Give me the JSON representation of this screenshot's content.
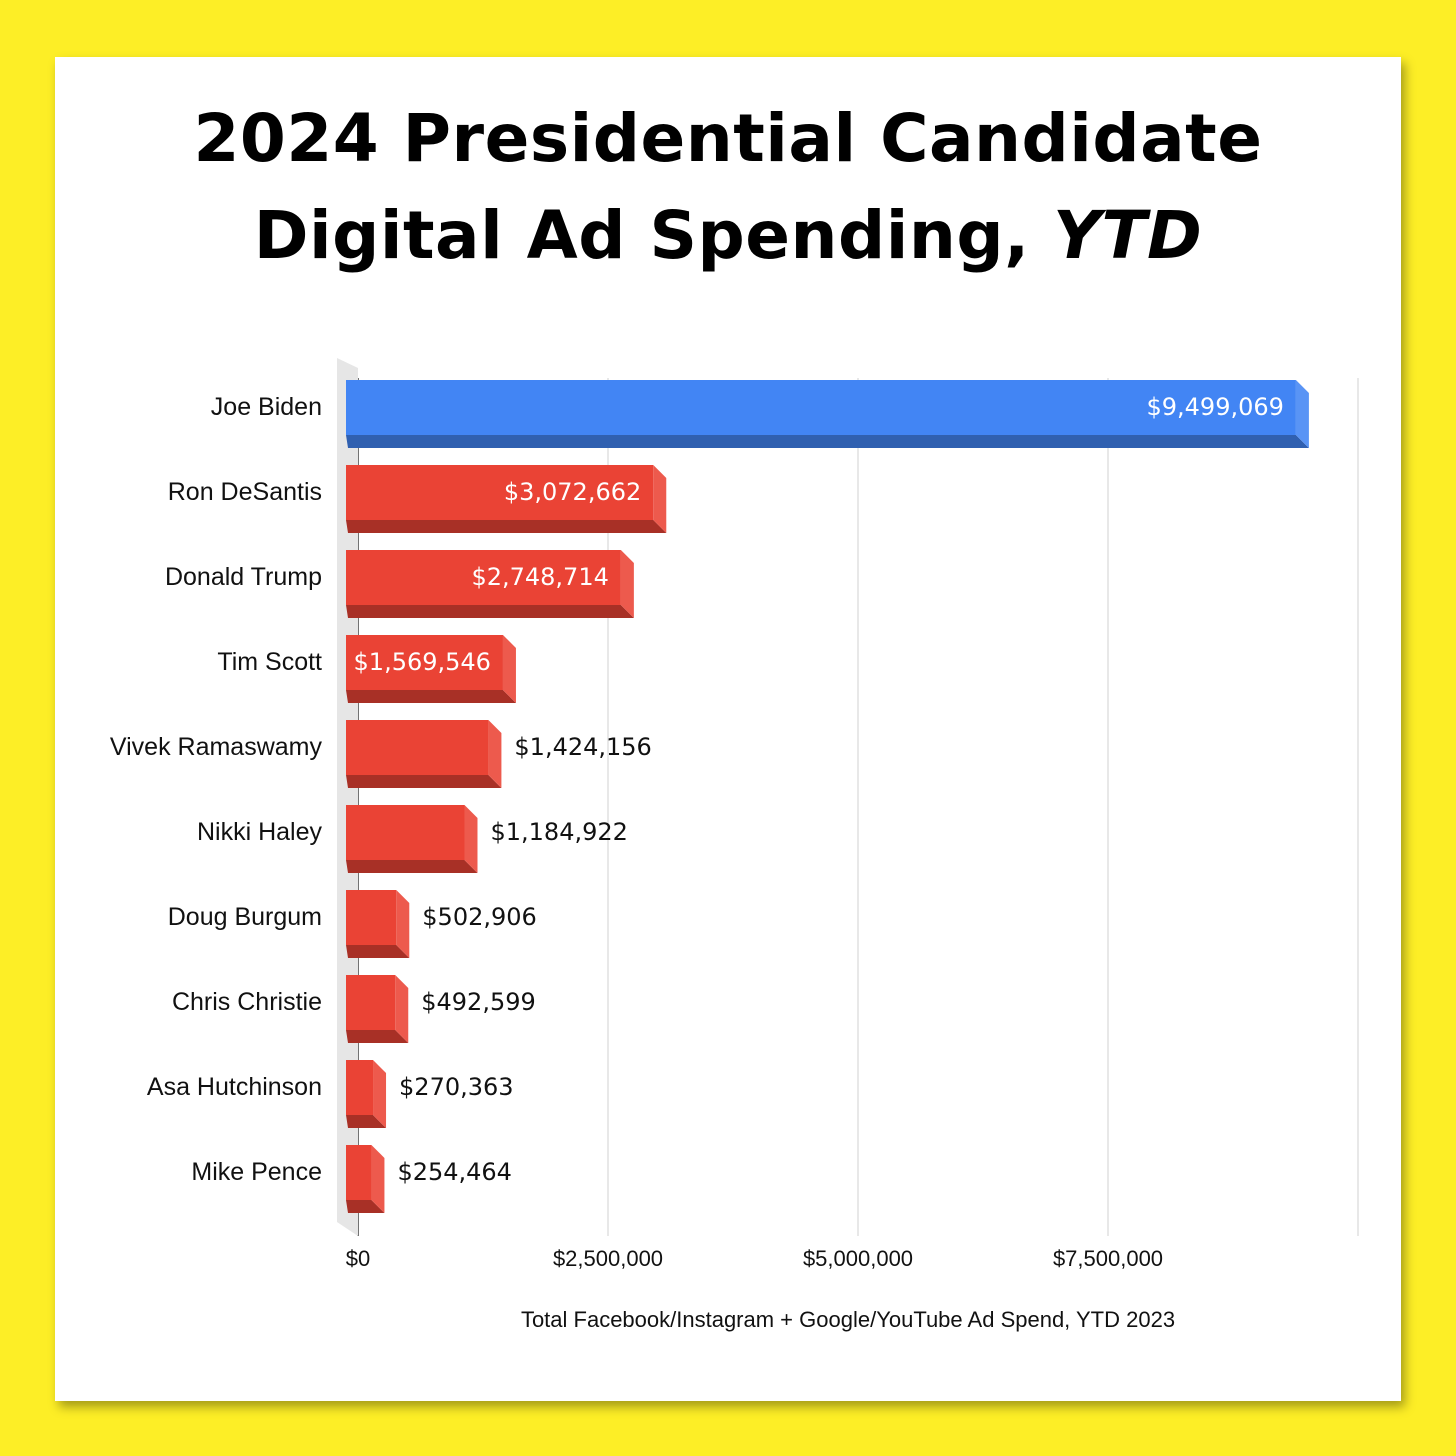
{
  "chart_data": {
    "type": "bar",
    "orientation": "horizontal",
    "title_line1": "2024 Presidential Candidate",
    "title_line2_main": "Digital Ad Spending, ",
    "title_line2_italic": "YTD",
    "categories": [
      "Joe Biden",
      "Ron DeSantis",
      "Donald Trump",
      "Tim Scott",
      "Vivek Ramaswamy",
      "Nikki Haley",
      "Doug Burgum",
      "Chris Christie",
      "Asa Hutchinson",
      "Mike Pence"
    ],
    "values": [
      9499069,
      3072662,
      2748714,
      1569546,
      1424156,
      1184922,
      502906,
      492599,
      270363,
      254464
    ],
    "value_labels": [
      "$9,499,069",
      "$3,072,662",
      "$2,748,714",
      "$1,569,546",
      "$1,424,156",
      "$1,184,922",
      "$502,906",
      "$492,599",
      "$270,363",
      "$254,464"
    ],
    "bar_colors": [
      "#4285f4",
      "#ea4335",
      "#ea4335",
      "#ea4335",
      "#ea4335",
      "#ea4335",
      "#ea4335",
      "#ea4335",
      "#ea4335",
      "#ea4335"
    ],
    "xlim": [
      0,
      10000000
    ],
    "x_ticks": [
      0,
      2500000,
      5000000,
      7500000,
      10000000
    ],
    "x_tick_labels": [
      "$0",
      "$2,500,000",
      "$5,000,000",
      "$7,500,000",
      ""
    ],
    "xlabel": "Total Facebook/Instagram + Google/YouTube Ad Spend, YTD 2023",
    "grid": true
  },
  "colors": {
    "background": "#fdee26",
    "card": "#ffffff",
    "democrat": "#4285f4",
    "republican": "#ea4335"
  }
}
